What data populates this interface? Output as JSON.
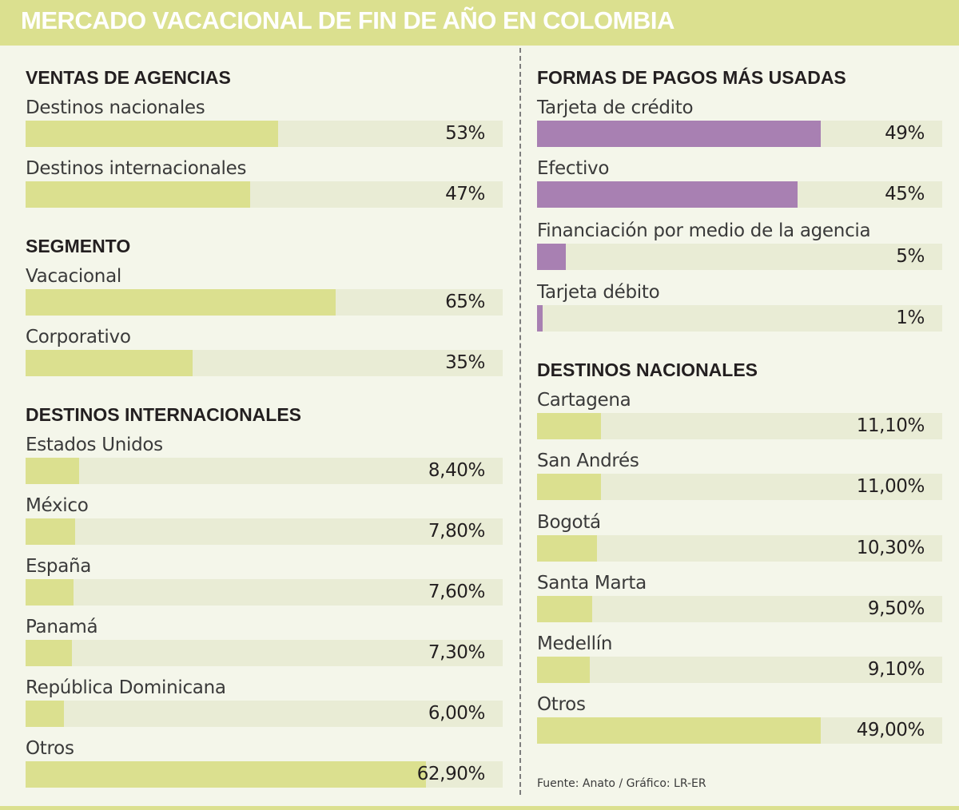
{
  "title": "MERCADO VACACIONAL DE FIN DE AÑO EN COLOMBIA",
  "source": "Fuente: Anato / Gráfico: LR-ER",
  "colors": {
    "header": "#dbe08f",
    "bar_green": "#dbe08f",
    "bar_purple": "#a880b2",
    "track": "#e9ecd5",
    "background": "#f4f6ea"
  },
  "sections": {
    "ventas": {
      "title": "VENTAS DE AGENCIAS"
    },
    "segmento": {
      "title": "SEGMENTO"
    },
    "internacionales": {
      "title": "DESTINOS INTERNACIONALES"
    },
    "pagos": {
      "title": "FORMAS DE PAGOS MÁS USADAS"
    },
    "nacionales": {
      "title": "DESTINOS NACIONALES"
    }
  },
  "chart_data": [
    {
      "type": "bar",
      "orientation": "horizontal",
      "title": "VENTAS DE AGENCIAS",
      "unit": "%",
      "xlim": [
        0,
        100
      ],
      "categories": [
        "Destinos nacionales",
        "Destinos internacionales"
      ],
      "values": [
        53,
        47
      ],
      "labels": [
        "53%",
        "47%"
      ]
    },
    {
      "type": "bar",
      "orientation": "horizontal",
      "title": "SEGMENTO",
      "unit": "%",
      "xlim": [
        0,
        100
      ],
      "categories": [
        "Vacacional",
        "Corporativo"
      ],
      "values": [
        65,
        35
      ],
      "labels": [
        "65%",
        "35%"
      ]
    },
    {
      "type": "bar",
      "orientation": "horizontal",
      "title": "DESTINOS INTERNACIONALES",
      "unit": "%",
      "xlim": [
        0,
        75
      ],
      "categories": [
        "Estados Unidos",
        "México",
        "España",
        "Panamá",
        "República Dominicana",
        "Otros"
      ],
      "values": [
        8.4,
        7.8,
        7.6,
        7.3,
        6.0,
        62.9
      ],
      "labels": [
        "8,40%",
        "7,80%",
        "7,60%",
        "7,30%",
        "6,00%",
        "62,90%"
      ]
    },
    {
      "type": "bar",
      "orientation": "horizontal",
      "title": "FORMAS DE PAGOS MÁS USADAS",
      "unit": "%",
      "xlim": [
        0,
        70
      ],
      "categories": [
        "Tarjeta de crédito",
        "Efectivo",
        "Financiación por medio de la agencia",
        "Tarjeta débito"
      ],
      "values": [
        49,
        45,
        5,
        1
      ],
      "labels": [
        "49%",
        "45%",
        "5%",
        "1%"
      ]
    },
    {
      "type": "bar",
      "orientation": "horizontal",
      "title": "DESTINOS NACIONALES",
      "unit": "%",
      "xlim": [
        0,
        70
      ],
      "categories": [
        "Cartagena",
        "San Andrés",
        "Bogotá",
        "Santa Marta",
        "Medellín",
        "Otros"
      ],
      "values": [
        11.1,
        11.0,
        10.3,
        9.5,
        9.1,
        49.0
      ],
      "labels": [
        "11,10%",
        "11,00%",
        "10,30%",
        "9,50%",
        "9,10%",
        "49,00%"
      ]
    }
  ]
}
